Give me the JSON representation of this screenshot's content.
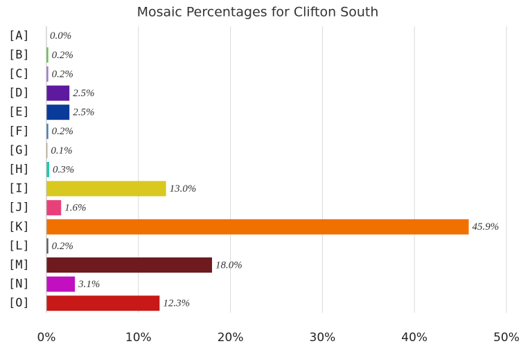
{
  "chart_data": {
    "type": "barh",
    "title": "Mosaic Percentages for Clifton South",
    "categories": [
      "[A]",
      "[B]",
      "[C]",
      "[D]",
      "[E]",
      "[F]",
      "[G]",
      "[H]",
      "[I]",
      "[J]",
      "[K]",
      "[L]",
      "[M]",
      "[N]",
      "[O]"
    ],
    "values": [
      0.0,
      0.2,
      0.2,
      2.5,
      2.5,
      0.2,
      0.1,
      0.3,
      13.0,
      1.6,
      45.9,
      0.2,
      18.0,
      3.1,
      12.3
    ],
    "value_labels": [
      "0.0%",
      "0.2%",
      "0.2%",
      "2.5%",
      "2.5%",
      "0.2%",
      "0.1%",
      "0.3%",
      "13.0%",
      "1.6%",
      "45.9%",
      "0.2%",
      "18.0%",
      "3.1%",
      "12.3%"
    ],
    "colors": [
      "#999999",
      "#5ac83c",
      "#a070e0",
      "#5e1a9e",
      "#0a3a9a",
      "#3a7ab8",
      "#a89060",
      "#20c8b0",
      "#d8c820",
      "#e8407a",
      "#f07000",
      "#555555",
      "#6e1a1e",
      "#c010c0",
      "#c81818"
    ],
    "xlim": [
      0,
      50
    ],
    "xticks": [
      {
        "value": 0,
        "label": "0%"
      },
      {
        "value": 10,
        "label": "10%"
      },
      {
        "value": 20,
        "label": "20%"
      },
      {
        "value": 30,
        "label": "30%"
      },
      {
        "value": 40,
        "label": "40%"
      },
      {
        "value": 50,
        "label": "50%"
      }
    ],
    "grid": true
  }
}
